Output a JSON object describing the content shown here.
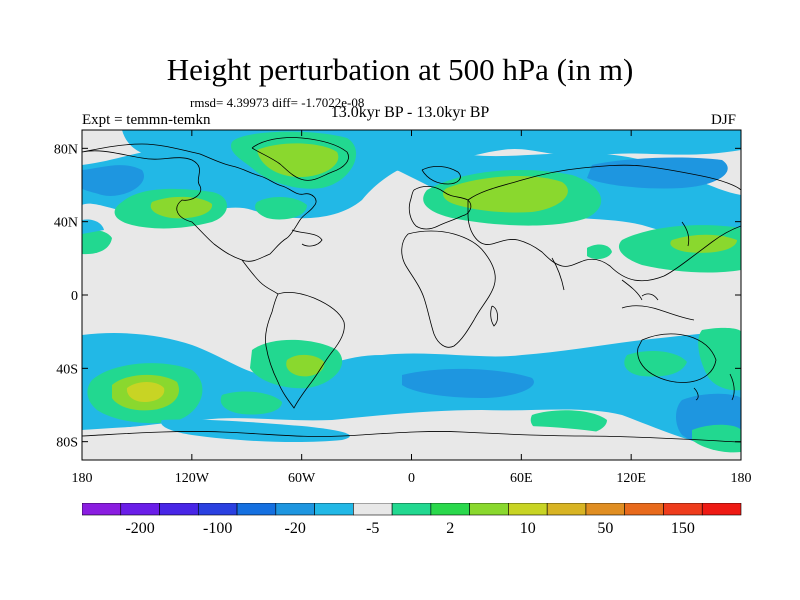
{
  "title": "Height perturbation at 500 hPa (in m)",
  "stats": "rmsd= 4.39973 diff= -1.7022e-08",
  "period": "13.0kyr BP - 13.0kyr BP",
  "expt": "Expt = temmn-temkn",
  "season": "DJF",
  "lat_ticks": [
    "80N",
    "40N",
    "0",
    "40S",
    "80S"
  ],
  "lon_ticks": [
    "180",
    "120W",
    "60W",
    "0",
    "60E",
    "120E",
    "180"
  ],
  "colorbar": {
    "levels": [
      "-200",
      "-100",
      "-20",
      "-5",
      "2",
      "10",
      "50",
      "150"
    ],
    "colors": [
      "#8a1de0",
      "#6a1ee8",
      "#4826e6",
      "#2a40e0",
      "#1570e0",
      "#1e96e0",
      "#22b8e6",
      "#e8e8e8",
      "#22d890",
      "#2ad84c",
      "#8ad82e",
      "#c8d424",
      "#d8b424",
      "#e08e22",
      "#e86a1c",
      "#ee3c1c",
      "#ee1a14"
    ]
  },
  "chart_data": {
    "type": "heatmap",
    "title": "Height perturbation at 500 hPa (in m)",
    "subtitle": "13.0kyr BP - 13.0kyr BP",
    "xlabel": "",
    "ylabel": "",
    "xlim": [
      -180,
      180
    ],
    "ylim": [
      -90,
      90
    ],
    "features": [
      {
        "lon": -160,
        "lat": 30,
        "value": -5
      },
      {
        "lon": -150,
        "lat": 55,
        "value": -5
      },
      {
        "lon": -120,
        "lat": 52,
        "value": 10
      },
      {
        "lon": -110,
        "lat": 70,
        "value": -20
      },
      {
        "lon": -68,
        "lat": 75,
        "value": 10
      },
      {
        "lon": -65,
        "lat": 45,
        "value": 10
      },
      {
        "lon": -15,
        "lat": 62,
        "value": -20
      },
      {
        "lon": 45,
        "lat": 52,
        "value": 10
      },
      {
        "lon": 95,
        "lat": 72,
        "value": -20
      },
      {
        "lon": 90,
        "lat": 52,
        "value": -5
      },
      {
        "lon": 155,
        "lat": 30,
        "value": 10
      },
      {
        "lon": -140,
        "lat": -50,
        "value": 10
      },
      {
        "lon": -75,
        "lat": -40,
        "value": 10
      },
      {
        "lon": -20,
        "lat": -55,
        "value": -20
      },
      {
        "lon": 90,
        "lat": -48,
        "value": -5
      },
      {
        "lon": 140,
        "lat": -40,
        "value": 2
      },
      {
        "lon": 168,
        "lat": -50,
        "value": -5
      },
      {
        "lon": 160,
        "lat": -78,
        "value": 2
      }
    ]
  }
}
